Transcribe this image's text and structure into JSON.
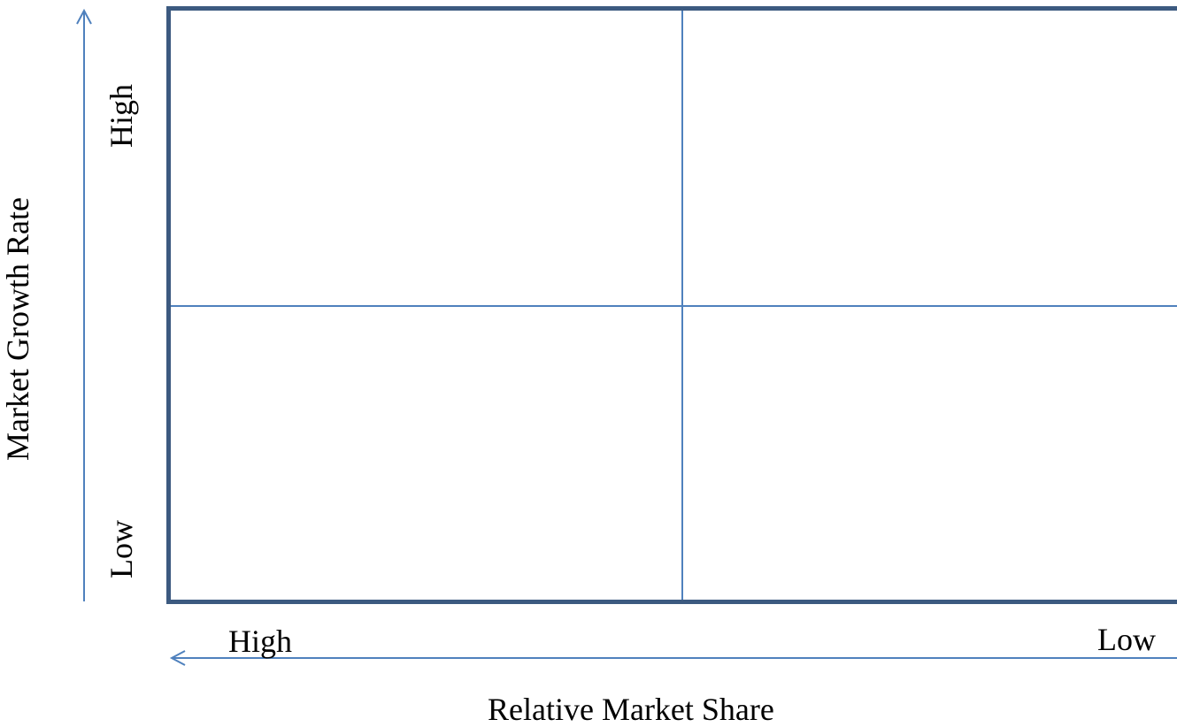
{
  "diagram": {
    "x_axis": {
      "title": "Relative Market Share",
      "start_label": "High",
      "end_label": "Low"
    },
    "y_axis": {
      "title": "Market Growth Rate",
      "top_label": "High",
      "bottom_label": "Low"
    },
    "grid": {
      "rows": 2,
      "columns": 2
    },
    "colors": {
      "frame": "#3c5a80",
      "dividers": "#4f81bd",
      "arrows": "#4f81bd",
      "text": "#000000"
    }
  }
}
